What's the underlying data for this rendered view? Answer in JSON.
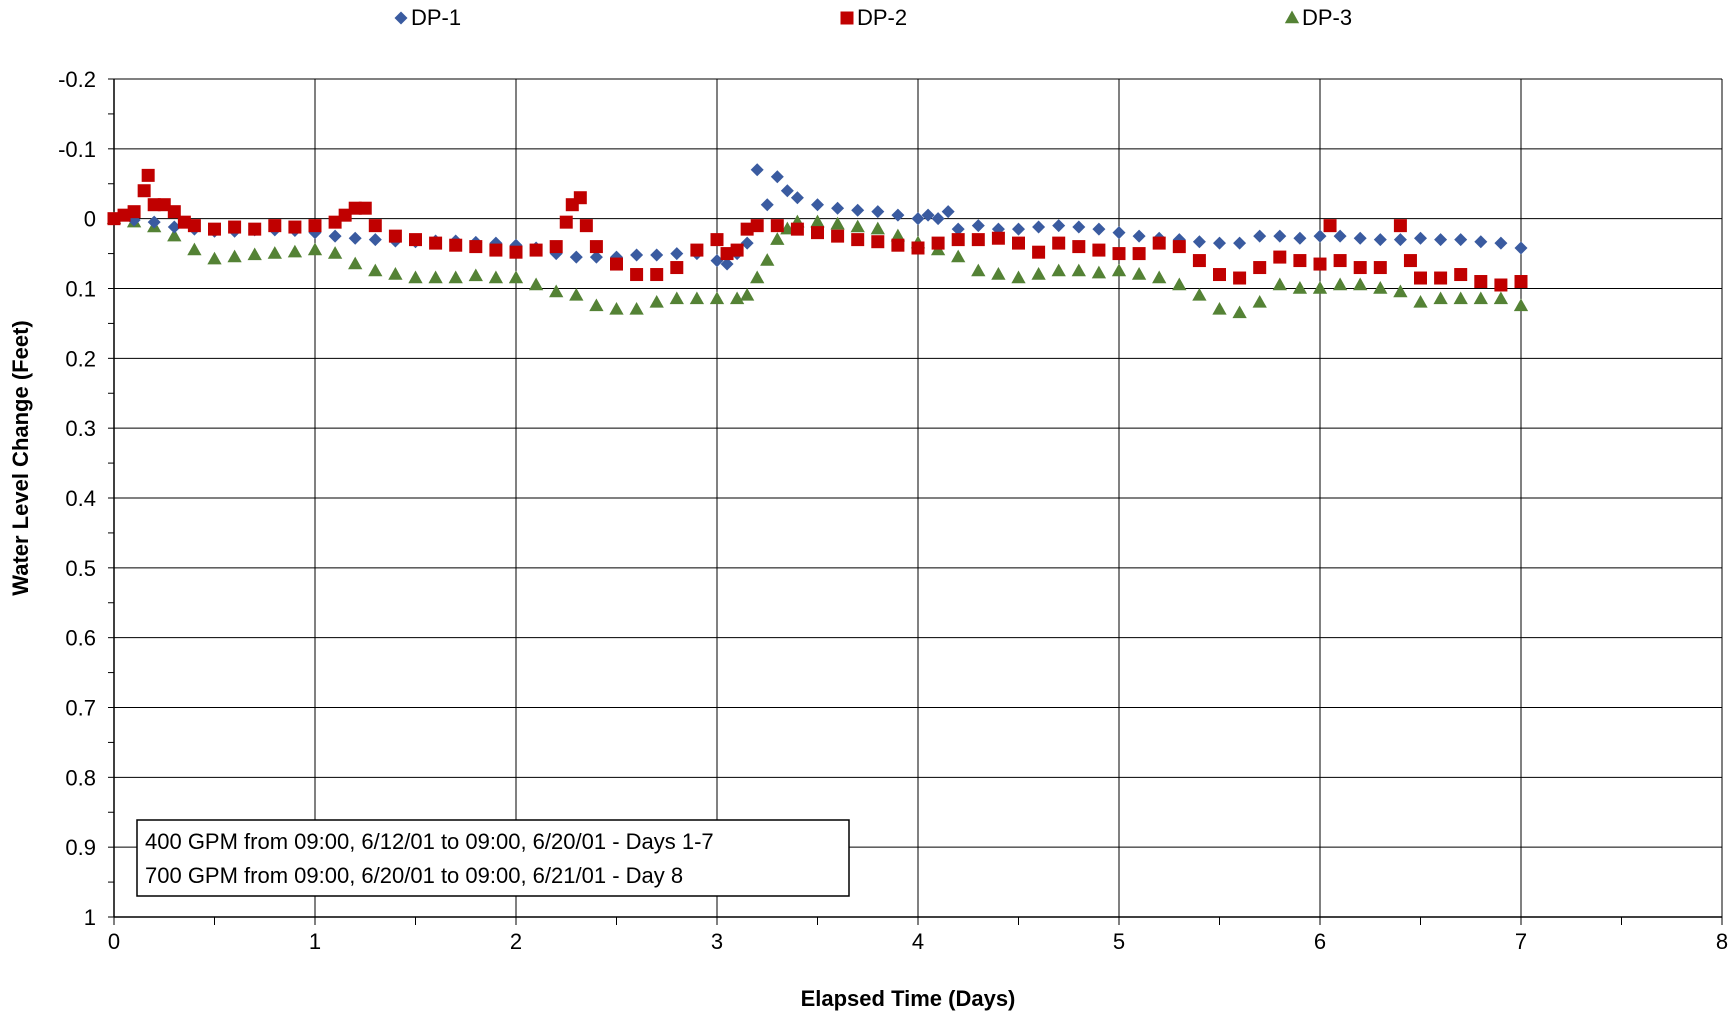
{
  "chart_data": {
    "type": "scatter",
    "xlabel": "Elapsed Time (Days)",
    "ylabel": "Water Level Change (Feet)",
    "xlim": [
      0,
      8
    ],
    "ylim": [
      -0.2,
      1
    ],
    "y_inverted": true,
    "x_ticks": [
      "0",
      "1",
      "2",
      "3",
      "4",
      "5",
      "6",
      "7",
      "8"
    ],
    "y_ticks": [
      "-0.2",
      "-0.1",
      "0",
      "0.1",
      "0.2",
      "0.3",
      "0.4",
      "0.5",
      "0.6",
      "0.7",
      "0.8",
      "0.9",
      "1"
    ],
    "grid": true,
    "legend_position": "top",
    "annotation": [
      "400 GPM from 09:00, 6/12/01 to 09:00, 6/20/01 - Days 1-7",
      "700 GPM from 09:00, 6/20/01 to 09:00, 6/21/01 - Day 8"
    ],
    "series": [
      {
        "name": "DP-1",
        "color": "#3A5BA0",
        "marker": "diamond",
        "points": [
          [
            0,
            0
          ],
          [
            0.1,
            0.002
          ],
          [
            0.2,
            0.005
          ],
          [
            0.3,
            0.012
          ],
          [
            0.4,
            0.015
          ],
          [
            0.5,
            0.018
          ],
          [
            0.6,
            0.018
          ],
          [
            0.7,
            0.016
          ],
          [
            0.8,
            0.016
          ],
          [
            0.9,
            0.017
          ],
          [
            1,
            0.02
          ],
          [
            1.1,
            0.025
          ],
          [
            1.2,
            0.028
          ],
          [
            1.3,
            0.03
          ],
          [
            1.4,
            0.032
          ],
          [
            1.5,
            0.033
          ],
          [
            1.6,
            0.032
          ],
          [
            1.7,
            0.032
          ],
          [
            1.8,
            0.034
          ],
          [
            1.9,
            0.035
          ],
          [
            2,
            0.038
          ],
          [
            2.1,
            0.042
          ],
          [
            2.2,
            0.05
          ],
          [
            2.3,
            0.055
          ],
          [
            2.4,
            0.055
          ],
          [
            2.5,
            0.055
          ],
          [
            2.6,
            0.052
          ],
          [
            2.7,
            0.052
          ],
          [
            2.8,
            0.05
          ],
          [
            2.9,
            0.05
          ],
          [
            3,
            0.06
          ],
          [
            3.05,
            0.065
          ],
          [
            3.1,
            0.05
          ],
          [
            3.15,
            0.035
          ],
          [
            3.2,
            -0.07
          ],
          [
            3.25,
            -0.02
          ],
          [
            3.3,
            -0.06
          ],
          [
            3.35,
            -0.04
          ],
          [
            3.4,
            -0.03
          ],
          [
            3.5,
            -0.02
          ],
          [
            3.6,
            -0.015
          ],
          [
            3.7,
            -0.012
          ],
          [
            3.8,
            -0.01
          ],
          [
            3.9,
            -0.005
          ],
          [
            4,
            0
          ],
          [
            4.05,
            -0.005
          ],
          [
            4.1,
            0
          ],
          [
            4.15,
            -0.01
          ],
          [
            4.2,
            0.015
          ],
          [
            4.3,
            0.01
          ],
          [
            4.4,
            0.015
          ],
          [
            4.5,
            0.015
          ],
          [
            4.6,
            0.012
          ],
          [
            4.7,
            0.01
          ],
          [
            4.8,
            0.012
          ],
          [
            4.9,
            0.015
          ],
          [
            5,
            0.02
          ],
          [
            5.1,
            0.025
          ],
          [
            5.2,
            0.028
          ],
          [
            5.3,
            0.03
          ],
          [
            5.4,
            0.033
          ],
          [
            5.5,
            0.035
          ],
          [
            5.6,
            0.035
          ],
          [
            5.7,
            0.025
          ],
          [
            5.8,
            0.025
          ],
          [
            5.9,
            0.028
          ],
          [
            6,
            0.025
          ],
          [
            6.1,
            0.025
          ],
          [
            6.2,
            0.028
          ],
          [
            6.3,
            0.03
          ],
          [
            6.4,
            0.03
          ],
          [
            6.5,
            0.028
          ],
          [
            6.6,
            0.03
          ],
          [
            6.7,
            0.03
          ],
          [
            6.8,
            0.033
          ],
          [
            6.9,
            0.035
          ],
          [
            7,
            0.042
          ]
        ]
      },
      {
        "name": "DP-2",
        "color": "#C00000",
        "marker": "square",
        "points": [
          [
            0,
            0
          ],
          [
            0.05,
            -0.005
          ],
          [
            0.1,
            -0.01
          ],
          [
            0.15,
            -0.04
          ],
          [
            0.17,
            -0.062
          ],
          [
            0.2,
            -0.02
          ],
          [
            0.25,
            -0.02
          ],
          [
            0.3,
            -0.01
          ],
          [
            0.35,
            0.005
          ],
          [
            0.4,
            0.01
          ],
          [
            0.5,
            0.015
          ],
          [
            0.6,
            0.012
          ],
          [
            0.7,
            0.015
          ],
          [
            0.8,
            0.01
          ],
          [
            0.9,
            0.012
          ],
          [
            1,
            0.01
          ],
          [
            1.1,
            0.005
          ],
          [
            1.15,
            -0.005
          ],
          [
            1.2,
            -0.015
          ],
          [
            1.25,
            -0.015
          ],
          [
            1.3,
            0.01
          ],
          [
            1.4,
            0.025
          ],
          [
            1.5,
            0.03
          ],
          [
            1.6,
            0.035
          ],
          [
            1.7,
            0.038
          ],
          [
            1.8,
            0.04
          ],
          [
            1.9,
            0.045
          ],
          [
            2,
            0.048
          ],
          [
            2.1,
            0.045
          ],
          [
            2.2,
            0.04
          ],
          [
            2.25,
            0.005
          ],
          [
            2.28,
            -0.02
          ],
          [
            2.32,
            -0.03
          ],
          [
            2.35,
            0.01
          ],
          [
            2.4,
            0.04
          ],
          [
            2.5,
            0.065
          ],
          [
            2.6,
            0.08
          ],
          [
            2.7,
            0.08
          ],
          [
            2.8,
            0.07
          ],
          [
            2.9,
            0.045
          ],
          [
            3,
            0.03
          ],
          [
            3.05,
            0.05
          ],
          [
            3.1,
            0.045
          ],
          [
            3.15,
            0.015
          ],
          [
            3.2,
            0.01
          ],
          [
            3.3,
            0.01
          ],
          [
            3.4,
            0.015
          ],
          [
            3.5,
            0.02
          ],
          [
            3.6,
            0.025
          ],
          [
            3.7,
            0.03
          ],
          [
            3.8,
            0.033
          ],
          [
            3.9,
            0.038
          ],
          [
            4,
            0.042
          ],
          [
            4.1,
            0.035
          ],
          [
            4.2,
            0.03
          ],
          [
            4.3,
            0.03
          ],
          [
            4.4,
            0.028
          ],
          [
            4.5,
            0.035
          ],
          [
            4.6,
            0.048
          ],
          [
            4.7,
            0.035
          ],
          [
            4.8,
            0.04
          ],
          [
            4.9,
            0.045
          ],
          [
            5,
            0.05
          ],
          [
            5.1,
            0.05
          ],
          [
            5.2,
            0.035
          ],
          [
            5.3,
            0.04
          ],
          [
            5.4,
            0.06
          ],
          [
            5.5,
            0.08
          ],
          [
            5.6,
            0.085
          ],
          [
            5.7,
            0.07
          ],
          [
            5.8,
            0.055
          ],
          [
            5.9,
            0.06
          ],
          [
            6,
            0.065
          ],
          [
            6.05,
            0.01
          ],
          [
            6.1,
            0.06
          ],
          [
            6.2,
            0.07
          ],
          [
            6.3,
            0.07
          ],
          [
            6.4,
            0.01
          ],
          [
            6.45,
            0.06
          ],
          [
            6.5,
            0.085
          ],
          [
            6.6,
            0.085
          ],
          [
            6.7,
            0.08
          ],
          [
            6.8,
            0.09
          ],
          [
            6.9,
            0.095
          ],
          [
            7,
            0.09
          ]
        ]
      },
      {
        "name": "DP-3",
        "color": "#548235",
        "marker": "triangle",
        "points": [
          [
            0,
            0
          ],
          [
            0.1,
            0.005
          ],
          [
            0.2,
            0.012
          ],
          [
            0.3,
            0.025
          ],
          [
            0.4,
            0.045
          ],
          [
            0.5,
            0.058
          ],
          [
            0.6,
            0.055
          ],
          [
            0.7,
            0.052
          ],
          [
            0.8,
            0.05
          ],
          [
            0.9,
            0.048
          ],
          [
            1,
            0.045
          ],
          [
            1.1,
            0.05
          ],
          [
            1.2,
            0.065
          ],
          [
            1.3,
            0.075
          ],
          [
            1.4,
            0.08
          ],
          [
            1.5,
            0.085
          ],
          [
            1.6,
            0.085
          ],
          [
            1.7,
            0.085
          ],
          [
            1.8,
            0.082
          ],
          [
            1.9,
            0.085
          ],
          [
            2,
            0.085
          ],
          [
            2.1,
            0.095
          ],
          [
            2.2,
            0.105
          ],
          [
            2.3,
            0.11
          ],
          [
            2.4,
            0.125
          ],
          [
            2.5,
            0.13
          ],
          [
            2.6,
            0.13
          ],
          [
            2.7,
            0.12
          ],
          [
            2.8,
            0.115
          ],
          [
            2.9,
            0.115
          ],
          [
            3,
            0.115
          ],
          [
            3.1,
            0.115
          ],
          [
            3.15,
            0.11
          ],
          [
            3.2,
            0.085
          ],
          [
            3.25,
            0.06
          ],
          [
            3.3,
            0.03
          ],
          [
            3.35,
            0.015
          ],
          [
            3.4,
            0.005
          ],
          [
            3.5,
            0.005
          ],
          [
            3.6,
            0.008
          ],
          [
            3.7,
            0.012
          ],
          [
            3.8,
            0.015
          ],
          [
            3.9,
            0.025
          ],
          [
            4,
            0.035
          ],
          [
            4.1,
            0.045
          ],
          [
            4.2,
            0.055
          ],
          [
            4.3,
            0.075
          ],
          [
            4.4,
            0.08
          ],
          [
            4.5,
            0.085
          ],
          [
            4.6,
            0.08
          ],
          [
            4.7,
            0.075
          ],
          [
            4.8,
            0.075
          ],
          [
            4.9,
            0.078
          ],
          [
            5,
            0.075
          ],
          [
            5.1,
            0.08
          ],
          [
            5.2,
            0.085
          ],
          [
            5.3,
            0.095
          ],
          [
            5.4,
            0.11
          ],
          [
            5.5,
            0.13
          ],
          [
            5.6,
            0.135
          ],
          [
            5.7,
            0.12
          ],
          [
            5.8,
            0.095
          ],
          [
            5.9,
            0.1
          ],
          [
            6,
            0.1
          ],
          [
            6.1,
            0.095
          ],
          [
            6.2,
            0.095
          ],
          [
            6.3,
            0.1
          ],
          [
            6.4,
            0.105
          ],
          [
            6.5,
            0.12
          ],
          [
            6.6,
            0.115
          ],
          [
            6.7,
            0.115
          ],
          [
            6.8,
            0.115
          ],
          [
            6.9,
            0.115
          ],
          [
            7,
            0.125
          ]
        ]
      }
    ]
  }
}
